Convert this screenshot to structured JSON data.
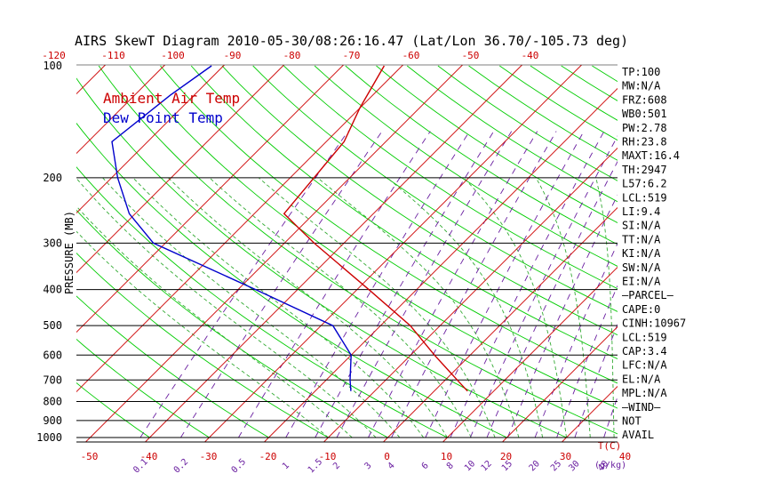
{
  "title": "AIRS SkewT Diagram 2010-05-30/08:26:16.47 (Lat/Lon 36.70/-105.73 deg)",
  "colors": {
    "ambient": "#cc0000",
    "dewpoint": "#0000cc",
    "isotherm": "#cc0000",
    "dry_adiabat": "#00cc00",
    "moist_adiabat": "#33aa33",
    "mixing_ratio": "#6a1fa0",
    "axis_labels": "#cc0000",
    "mixing_labels": "#6a1fa0"
  },
  "chart_data": {
    "type": "line",
    "title": "AIRS SkewT Diagram 2010-05-30/08:26:16.47 (Lat/Lon 36.70/-105.73 deg)",
    "ylabel": "PRESSURE (MB)",
    "xlabel_unit": "T(C)",
    "mixing_ratio_unit": "(g/kg)",
    "y_scale": "log",
    "ylim": [
      1000,
      100
    ],
    "pressure_ticks": [
      100,
      200,
      300,
      400,
      500,
      600,
      700,
      800,
      900,
      1000
    ],
    "bottom_temp_ticks": [
      -50,
      -40,
      -30,
      -20,
      -10,
      0,
      10,
      20,
      30,
      40
    ],
    "top_temp_ticks": [
      -120,
      -110,
      -100,
      -90,
      -80,
      -70,
      -60,
      -50,
      -40
    ],
    "mixing_ratio_ticks": [
      "0.1",
      "0.2",
      "0.5",
      "1",
      "1.5",
      "2",
      "3",
      "4",
      "6",
      "8",
      "10",
      "12",
      "15",
      "20",
      "25",
      "30",
      "40"
    ],
    "series": [
      {
        "name": "Ambient Air Temp",
        "points": [
          {
            "p": 100,
            "t": -63
          },
          {
            "p": 130,
            "t": -60
          },
          {
            "p": 160,
            "t": -57
          },
          {
            "p": 200,
            "t": -56
          },
          {
            "p": 250,
            "t": -55
          },
          {
            "p": 300,
            "t": -45
          },
          {
            "p": 400,
            "t": -28
          },
          {
            "p": 500,
            "t": -15
          },
          {
            "p": 600,
            "t": -6
          },
          {
            "p": 700,
            "t": 2
          },
          {
            "p": 750,
            "t": 5.6
          }
        ]
      },
      {
        "name": "Dew Point Temp",
        "points": [
          {
            "p": 100,
            "t": -92
          },
          {
            "p": 120,
            "t": -94
          },
          {
            "p": 160,
            "t": -96
          },
          {
            "p": 200,
            "t": -89
          },
          {
            "p": 250,
            "t": -81
          },
          {
            "p": 300,
            "t": -72
          },
          {
            "p": 400,
            "t": -47
          },
          {
            "p": 500,
            "t": -28
          },
          {
            "p": 600,
            "t": -20
          },
          {
            "p": 700,
            "t": -16
          },
          {
            "p": 750,
            "t": -14
          }
        ]
      }
    ],
    "legend": [
      "Ambient Air Temp",
      "Dew Point Temp"
    ],
    "legend_position": "top-left"
  },
  "indices": [
    "TP:100",
    "MW:N/A",
    "FRZ:608",
    "WB0:501",
    "PW:2.78",
    "RH:23.8",
    "MAXT:16.4",
    "TH:2947",
    "L57:6.2",
    "LCL:519",
    "LI:9.4",
    "SI:N/A",
    "TT:N/A",
    "KI:N/A",
    "SW:N/A",
    "EI:N/A",
    "—PARCEL—",
    "CAPE:0",
    "CINH:10967",
    "LCL:519",
    "CAP:3.4",
    "LFC:N/A",
    "EL:N/A",
    "MPL:N/A",
    "—WIND—",
    "NOT",
    "AVAIL"
  ]
}
